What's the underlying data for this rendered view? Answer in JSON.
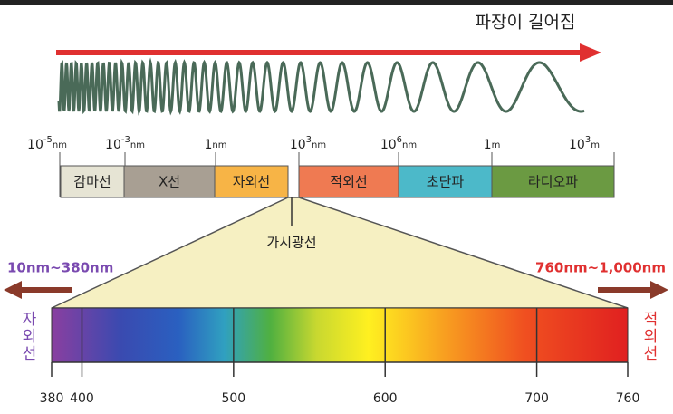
{
  "header": {
    "title": "파장이 길어짐"
  },
  "scale": {
    "ticks": [
      {
        "base": "10",
        "exp": "-5",
        "unit": "nm"
      },
      {
        "base": "10",
        "exp": "-3",
        "unit": "nm"
      },
      {
        "base": "1",
        "unit": "nm"
      },
      {
        "base": "10",
        "exp": "3",
        "unit": "nm"
      },
      {
        "base": "10",
        "exp": "6",
        "unit": "nm"
      },
      {
        "base": "1",
        "unit": "m"
      },
      {
        "base": "10",
        "exp": "3",
        "unit": "m"
      }
    ]
  },
  "bands": [
    {
      "label": "감마선",
      "color": "#e6e4d4"
    },
    {
      "label": "X선",
      "color": "#a89f93"
    },
    {
      "label": "자외선",
      "color": "#f7b446"
    },
    {
      "label": "적외선",
      "color": "#ef7a52"
    },
    {
      "label": "초단파",
      "color": "#4cb9c9"
    },
    {
      "label": "라디오파",
      "color": "#6b9a42"
    }
  ],
  "visible": {
    "label": "가시광선",
    "left_range": "10nm~380nm",
    "right_range": "760nm~1,000nm",
    "left_name": "자외선",
    "right_name": "적외선",
    "ticks": [
      380,
      400,
      500,
      600,
      700,
      760
    ]
  }
}
